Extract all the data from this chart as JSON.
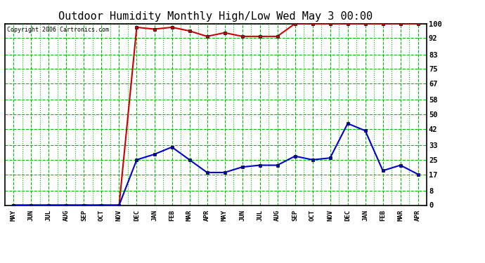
{
  "title": "Outdoor Humidity Monthly High/Low Wed May 3 00:00",
  "copyright": "Copyright 2006 Cartronics.com",
  "x_labels": [
    "MAY",
    "JUN",
    "JUL",
    "AUG",
    "SEP",
    "OCT",
    "NOV",
    "DEC",
    "JAN",
    "FEB",
    "MAR",
    "APR",
    "MAY",
    "JUN",
    "JUL",
    "AUG",
    "SEP",
    "OCT",
    "NOV",
    "DEC",
    "JAN",
    "FEB",
    "MAR",
    "APR"
  ],
  "high_values": [
    0,
    0,
    0,
    0,
    0,
    0,
    0,
    98,
    97,
    98,
    96,
    93,
    95,
    93,
    93,
    93,
    100,
    100,
    100,
    100,
    100,
    100,
    100,
    100
  ],
  "low_values": [
    0,
    0,
    0,
    0,
    0,
    0,
    0,
    25,
    28,
    32,
    25,
    18,
    18,
    21,
    22,
    22,
    27,
    25,
    26,
    45,
    41,
    19,
    22,
    17
  ],
  "high_color": "#cc0000",
  "low_color": "#0000cc",
  "bg_color": "#ffffff",
  "plot_bg_color": "#ffffff",
  "grid_color": "#00bb00",
  "yticks": [
    0,
    8,
    17,
    25,
    33,
    42,
    50,
    58,
    67,
    75,
    83,
    92,
    100
  ],
  "ylim": [
    0,
    100
  ],
  "title_fontsize": 11,
  "marker": "s",
  "markersize": 3,
  "linewidth": 1.5
}
